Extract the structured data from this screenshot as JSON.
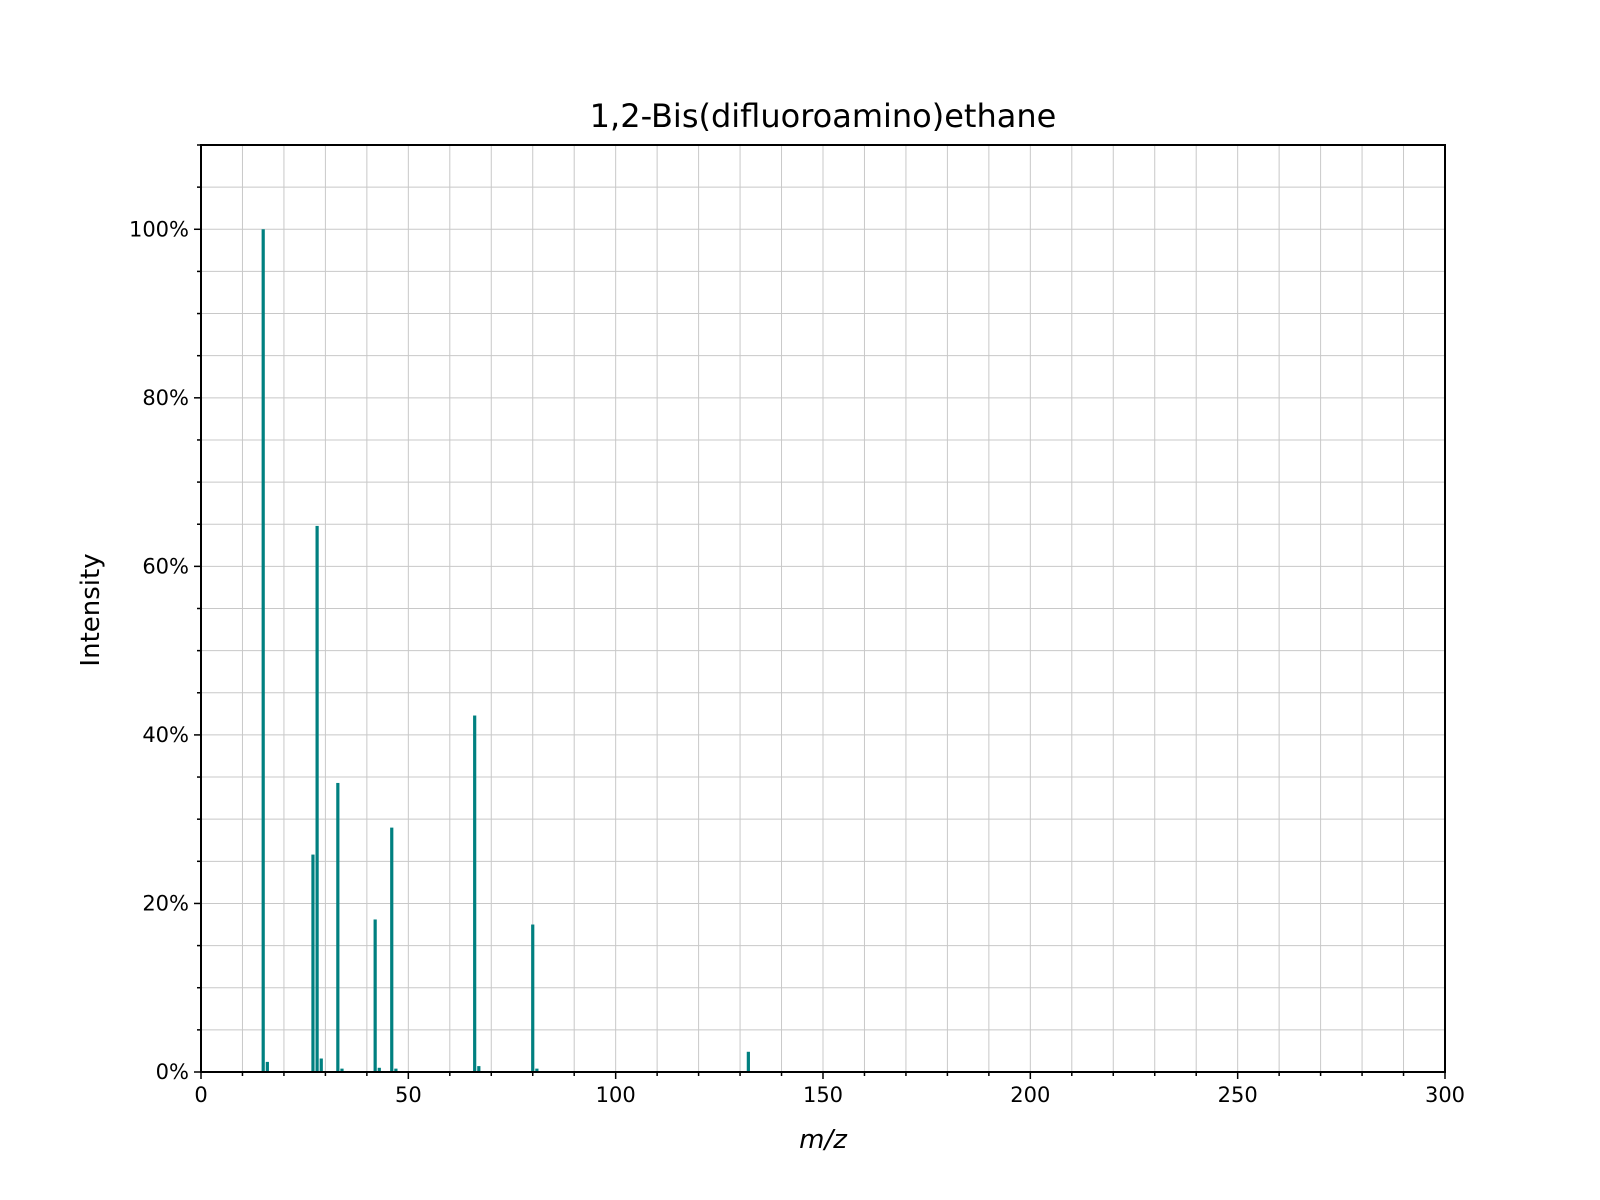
{
  "chart_data": {
    "type": "bar",
    "title": "1,2-Bis(difluoroamino)ethane",
    "xlabel": "m/z",
    "ylabel": "Intensity",
    "xlim": [
      0,
      300
    ],
    "ylim": [
      0,
      110
    ],
    "x_ticks": [
      0,
      50,
      100,
      150,
      200,
      250,
      300
    ],
    "x_tick_labels": [
      "0",
      "50",
      "100",
      "150",
      "200",
      "250",
      "300"
    ],
    "y_ticks": [
      0,
      20,
      40,
      60,
      80,
      100
    ],
    "y_tick_labels": [
      "0%",
      "20%",
      "40%",
      "60%",
      "80%",
      "100%"
    ],
    "grid": true,
    "bar_color": "#008080",
    "series": [
      {
        "x": [
          15,
          16,
          27,
          28,
          29,
          33,
          34,
          42,
          43,
          46,
          47,
          66,
          67,
          80,
          81,
          132
        ],
        "values": [
          100,
          1.2,
          25.8,
          64.8,
          1.6,
          34.3,
          0.4,
          18.1,
          0.5,
          29.0,
          0.4,
          42.3,
          0.7,
          17.5,
          0.4,
          2.4
        ]
      }
    ]
  }
}
